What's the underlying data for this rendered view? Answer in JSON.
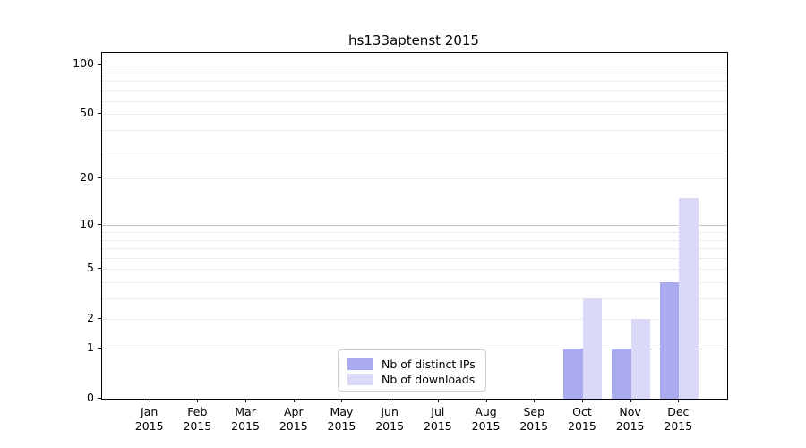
{
  "chart_data": {
    "type": "bar",
    "title": "hs133aptenst 2015",
    "year": "2015",
    "categories": [
      "Jan",
      "Feb",
      "Mar",
      "Apr",
      "May",
      "Jun",
      "Jul",
      "Aug",
      "Sep",
      "Oct",
      "Nov",
      "Dec"
    ],
    "series": [
      {
        "name": "Nb of distinct IPs",
        "color": "#aaaaef",
        "values": [
          0,
          0,
          0,
          0,
          0,
          0,
          0,
          0,
          0,
          1,
          1,
          4
        ]
      },
      {
        "name": "Nb of downloads",
        "color": "#dadaf8",
        "values": [
          0,
          0,
          0,
          0,
          0,
          0,
          0,
          0,
          0,
          3,
          2,
          15
        ]
      }
    ],
    "yscale": "log1p",
    "ylim": [
      0,
      117
    ],
    "y_tick_labels": [
      0,
      1,
      2,
      5,
      10,
      20,
      50,
      100
    ],
    "y_major_gridlines": [
      1,
      10,
      100
    ],
    "y_minor_gridlines": [
      2,
      3,
      4,
      5,
      6,
      7,
      8,
      9,
      20,
      30,
      40,
      50,
      60,
      70,
      80,
      90
    ],
    "grid": true,
    "legend_position": "lower center",
    "colors": {
      "major_grid": "#c3c3c3",
      "minor_grid": "#ececec",
      "spine": "#000000",
      "legend_border": "#cccccc"
    }
  }
}
